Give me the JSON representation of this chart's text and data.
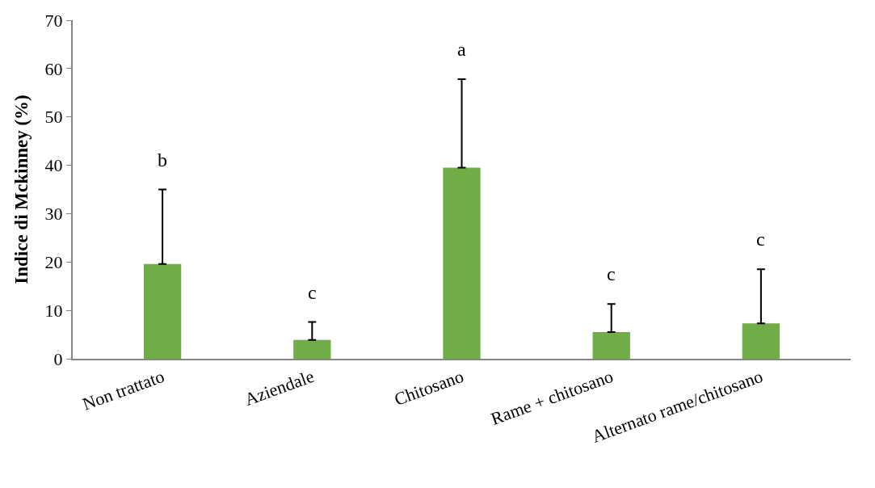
{
  "chart_data": {
    "type": "bar",
    "ylabel": "Indice di Mckinney (%)",
    "categories": [
      "Non trattato",
      "Aziendale",
      "Chitosano",
      "Rame + chitosano",
      "Alternato rame/chitosano"
    ],
    "values": [
      19.6,
      3.9,
      39.5,
      5.5,
      7.3
    ],
    "errors": [
      [
        19.6,
        35
      ],
      [
        3.9,
        7.6
      ],
      [
        39.5,
        57.8
      ],
      [
        5.5,
        11.3
      ],
      [
        7.3,
        18.5
      ]
    ],
    "color": "#70ad47",
    "ylim": [
      0,
      70
    ],
    "yticks": [
      0,
      10,
      20,
      30,
      40,
      50,
      60,
      70
    ],
    "annotations": [
      "b",
      "c",
      "a",
      "c",
      "c"
    ]
  }
}
